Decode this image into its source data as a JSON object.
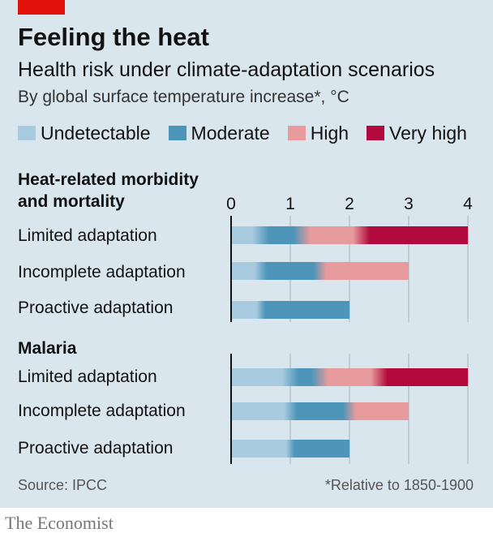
{
  "header": {
    "title": "Feeling the heat",
    "subtitle": "Health risk under climate-adaptation scenarios",
    "description": "By global surface temperature increase*, °C"
  },
  "legend": [
    {
      "label": "Undetectable",
      "color": "#a8cbe0"
    },
    {
      "label": "Moderate",
      "color": "#4d95b9"
    },
    {
      "label": "High",
      "color": "#e79b9c"
    },
    {
      "label": "Very high",
      "color": "#b20a3c"
    }
  ],
  "footer": {
    "source": "Source: IPCC",
    "footnote": "*Relative to 1850-1900",
    "brand": "The Economist"
  },
  "chart_data": [
    {
      "type": "bar",
      "title": "Heat-related morbidity and mortality",
      "title_lines": [
        "Heat-related morbidity",
        "and mortality"
      ],
      "x_ticks": [
        "0",
        "1",
        "2",
        "3",
        "4"
      ],
      "xlim": [
        0,
        4
      ],
      "rows": [
        {
          "label": "Limited adaptation",
          "segments": [
            {
              "level": "Undetectable",
              "start": 0,
              "end": 0.5
            },
            {
              "level": "Moderate",
              "start": 0.5,
              "end": 1.2
            },
            {
              "level": "High",
              "start": 1.2,
              "end": 2.2
            },
            {
              "level": "Very high",
              "start": 2.2,
              "end": 4.0
            }
          ]
        },
        {
          "label": "Incomplete adaptation",
          "segments": [
            {
              "level": "Undetectable",
              "start": 0,
              "end": 0.5
            },
            {
              "level": "Moderate",
              "start": 0.5,
              "end": 1.5
            },
            {
              "level": "High",
              "start": 1.5,
              "end": 3.0
            }
          ]
        },
        {
          "label": "Proactive adaptation",
          "segments": [
            {
              "level": "Undetectable",
              "start": 0,
              "end": 0.5
            },
            {
              "level": "Moderate",
              "start": 0.5,
              "end": 2.0
            }
          ]
        }
      ]
    },
    {
      "type": "bar",
      "title": "Malaria",
      "title_lines": [
        "Malaria"
      ],
      "xlim": [
        0,
        4
      ],
      "rows": [
        {
          "label": "Limited adaptation",
          "segments": [
            {
              "level": "Undetectable",
              "start": 0,
              "end": 1.0
            },
            {
              "level": "Moderate",
              "start": 1.0,
              "end": 1.5
            },
            {
              "level": "High",
              "start": 1.5,
              "end": 2.5
            },
            {
              "level": "Very high",
              "start": 2.5,
              "end": 4.0
            }
          ]
        },
        {
          "label": "Incomplete adaptation",
          "segments": [
            {
              "level": "Undetectable",
              "start": 0,
              "end": 1.0
            },
            {
              "level": "Moderate",
              "start": 1.0,
              "end": 2.0
            },
            {
              "level": "High",
              "start": 2.0,
              "end": 3.0
            }
          ]
        },
        {
          "label": "Proactive adaptation",
          "segments": [
            {
              "level": "Undetectable",
              "start": 0,
              "end": 1.0
            },
            {
              "level": "Moderate",
              "start": 1.0,
              "end": 2.0
            }
          ]
        }
      ]
    }
  ]
}
